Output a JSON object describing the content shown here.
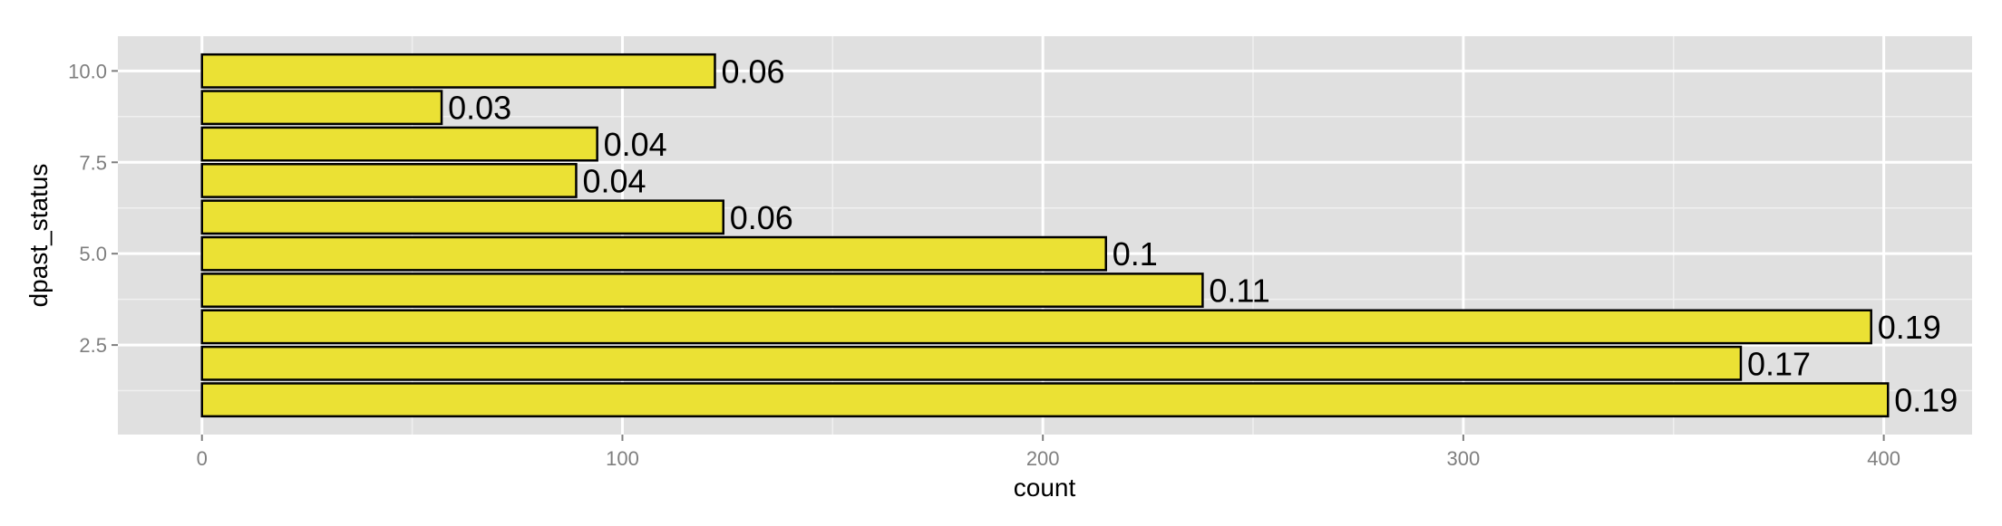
{
  "chart_data": {
    "type": "bar",
    "orientation": "horizontal",
    "xlabel": "count",
    "ylabel": "dpast_status",
    "x_ticks": [
      0,
      100,
      200,
      300,
      400
    ],
    "x_tick_labels": [
      "0",
      "100",
      "200",
      "300",
      "400"
    ],
    "xlim": [
      -20,
      421
    ],
    "y_ticks": [
      2.5,
      5.0,
      7.5,
      10.0
    ],
    "y_tick_labels": [
      "2.5",
      "5.0",
      "7.5",
      "10.0"
    ],
    "ylim": [
      0.05,
      10.95
    ],
    "grid": true,
    "bar_fill": "#ebe134",
    "bar_outline": "#000000",
    "panel_background": "#e0e0e0",
    "bars": [
      {
        "y": 1,
        "value": 401,
        "label": "0.19"
      },
      {
        "y": 2,
        "value": 366,
        "label": "0.17"
      },
      {
        "y": 3,
        "value": 397,
        "label": "0.19"
      },
      {
        "y": 4,
        "value": 238,
        "label": "0.11"
      },
      {
        "y": 5,
        "value": 215,
        "label": "0.1"
      },
      {
        "y": 6,
        "value": 124,
        "label": "0.06"
      },
      {
        "y": 7,
        "value": 89,
        "label": "0.04"
      },
      {
        "y": 8,
        "value": 94,
        "label": "0.04"
      },
      {
        "y": 9,
        "value": 57,
        "label": "0.03"
      },
      {
        "y": 10,
        "value": 122,
        "label": "0.06"
      }
    ]
  }
}
